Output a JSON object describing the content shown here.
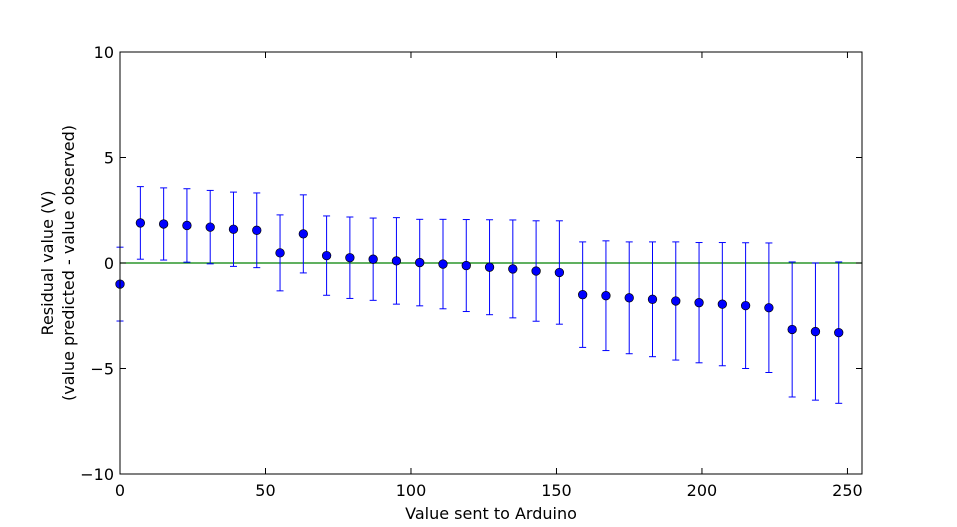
{
  "chart_data": {
    "type": "scatter",
    "title": "",
    "xlabel": "Value sent to Arduino",
    "ylabel_lines": [
      "Residual value (V)",
      "(value predicted - value observed)"
    ],
    "xlim": [
      0,
      255
    ],
    "ylim": [
      -10,
      10
    ],
    "x_ticks": [
      0,
      50,
      100,
      150,
      200,
      250
    ],
    "x_tick_labels": [
      "0",
      "50",
      "100",
      "150",
      "200",
      "250"
    ],
    "y_ticks": [
      -10,
      -5,
      0,
      5,
      10
    ],
    "y_tick_labels": [
      "−10",
      "−5",
      "0",
      "5",
      "10"
    ],
    "grid": false,
    "reference_line": {
      "y": 0,
      "color": "#008000"
    },
    "series": [
      {
        "marker_color": "#0000ff",
        "errorbar_color": "#0000ff",
        "points": [
          {
            "x": 0,
            "y": -1.0,
            "err": 1.75
          },
          {
            "x": 7,
            "y": 1.9,
            "err": 1.72
          },
          {
            "x": 15,
            "y": 1.85,
            "err": 1.71
          },
          {
            "x": 23,
            "y": 1.78,
            "err": 1.74
          },
          {
            "x": 31,
            "y": 1.7,
            "err": 1.74
          },
          {
            "x": 39,
            "y": 1.6,
            "err": 1.76
          },
          {
            "x": 47,
            "y": 1.55,
            "err": 1.77
          },
          {
            "x": 55,
            "y": 0.48,
            "err": 1.8
          },
          {
            "x": 63,
            "y": 1.38,
            "err": 1.85
          },
          {
            "x": 71,
            "y": 0.35,
            "err": 1.88
          },
          {
            "x": 79,
            "y": 0.25,
            "err": 1.93
          },
          {
            "x": 87,
            "y": 0.18,
            "err": 1.95
          },
          {
            "x": 95,
            "y": 0.1,
            "err": 2.05
          },
          {
            "x": 103,
            "y": 0.02,
            "err": 2.05
          },
          {
            "x": 111,
            "y": -0.05,
            "err": 2.12
          },
          {
            "x": 119,
            "y": -0.12,
            "err": 2.18
          },
          {
            "x": 127,
            "y": -0.2,
            "err": 2.25
          },
          {
            "x": 135,
            "y": -0.28,
            "err": 2.32
          },
          {
            "x": 143,
            "y": -0.38,
            "err": 2.38
          },
          {
            "x": 151,
            "y": -0.45,
            "err": 2.45
          },
          {
            "x": 159,
            "y": -1.5,
            "err": 2.5
          },
          {
            "x": 167,
            "y": -1.55,
            "err": 2.6
          },
          {
            "x": 175,
            "y": -1.65,
            "err": 2.65
          },
          {
            "x": 183,
            "y": -1.72,
            "err": 2.72
          },
          {
            "x": 191,
            "y": -1.8,
            "err": 2.8
          },
          {
            "x": 199,
            "y": -1.88,
            "err": 2.85
          },
          {
            "x": 207,
            "y": -1.95,
            "err": 2.92
          },
          {
            "x": 215,
            "y": -2.02,
            "err": 2.98
          },
          {
            "x": 223,
            "y": -2.12,
            "err": 3.07
          },
          {
            "x": 231,
            "y": -3.15,
            "err": 3.2
          },
          {
            "x": 239,
            "y": -3.25,
            "err": 3.25
          },
          {
            "x": 247,
            "y": -3.3,
            "err": 3.35
          }
        ]
      }
    ]
  }
}
